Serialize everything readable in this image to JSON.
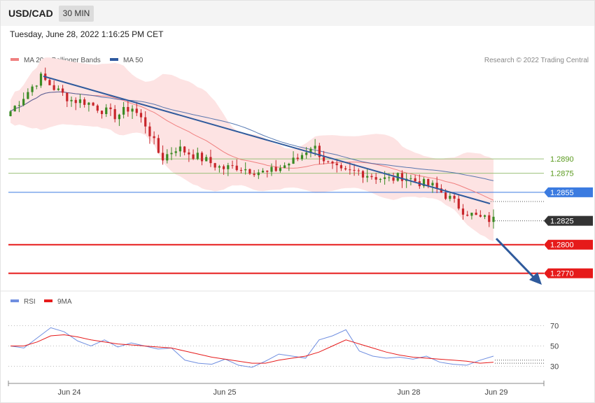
{
  "header": {
    "symbol": "USD/CAD",
    "timeframe": "30 MIN",
    "datetime": "Tuesday, June 28, 2022 1:16:25 PM CET"
  },
  "legend": {
    "ma20_label": "MA 20 + Bollinger Bands",
    "ma50_label": "MA 50",
    "rsi_label": "RSI",
    "ma9_label": "9MA"
  },
  "credit": "Research © 2022 Trading Central",
  "colors": {
    "up_candle": "#3a8a23",
    "down_candle": "#c8262b",
    "ma20": "#f08080",
    "ma50": "#2f5aa0",
    "bollinger_fill": "#fde3e3",
    "trendline": "#2f5a9c",
    "resistance": "#9bc07a",
    "pivot": "#3b7be0",
    "support": "#e61a1a",
    "current": "#333333",
    "rsi": "#6f8ee0",
    "rsi_ma": "#e61a1a"
  },
  "chart_data": [
    {
      "type": "candlestick",
      "title": "",
      "x_ticks": [
        "Jun 24",
        "Jun 25",
        "Jun 28",
        "Jun 29"
      ],
      "y_range": [
        1.2755,
        1.299
      ],
      "levels": [
        {
          "name": "resistance-2",
          "value": 1.289,
          "label": "1.2890",
          "style": "resistance"
        },
        {
          "name": "resistance-1",
          "value": 1.2875,
          "label": "1.2875",
          "style": "resistance"
        },
        {
          "name": "pivot",
          "value": 1.2855,
          "label": "1.2855",
          "style": "pivot"
        },
        {
          "name": "current-price",
          "value": 1.2825,
          "label": "1.2825",
          "style": "current"
        },
        {
          "name": "support-1",
          "value": 1.28,
          "label": "1.2800",
          "style": "support"
        },
        {
          "name": "support-2",
          "value": 1.277,
          "label": "1.2770",
          "style": "support"
        }
      ],
      "close_start": 1.294,
      "close_path": [
        1.294,
        1.2958,
        1.2976,
        1.2963,
        1.2952,
        1.295,
        1.2942,
        1.2935,
        1.2945,
        1.2925,
        1.289,
        1.2902,
        1.2895,
        1.2888,
        1.288,
        1.2882,
        1.2878,
        1.2875,
        1.2882,
        1.289,
        1.2905,
        1.2885,
        1.2875,
        1.2877,
        1.2872,
        1.2868,
        1.2872,
        1.2866,
        1.2861,
        1.285,
        1.2836,
        1.2828,
        1.2826
      ]
    },
    {
      "type": "line",
      "title": "",
      "y_ticks": [
        70,
        50,
        30
      ],
      "y_range": [
        20,
        80
      ],
      "series": [
        {
          "name": "RSI",
          "values": [
            50,
            48,
            58,
            68,
            64,
            55,
            50,
            56,
            49,
            53,
            50,
            47,
            48,
            36,
            33,
            32,
            37,
            31,
            29,
            35,
            42,
            40,
            38,
            56,
            60,
            66,
            45,
            40,
            38,
            39,
            37,
            40,
            34,
            32,
            31,
            36,
            40
          ]
        },
        {
          "name": "9MA",
          "values": [
            50,
            50,
            54,
            60,
            61,
            59,
            56,
            54,
            52,
            51,
            50,
            49,
            48,
            45,
            42,
            39,
            37,
            35,
            33,
            33,
            36,
            38,
            40,
            44,
            50,
            56,
            52,
            48,
            44,
            41,
            39,
            38,
            37,
            36,
            35,
            33,
            34
          ]
        }
      ]
    }
  ]
}
